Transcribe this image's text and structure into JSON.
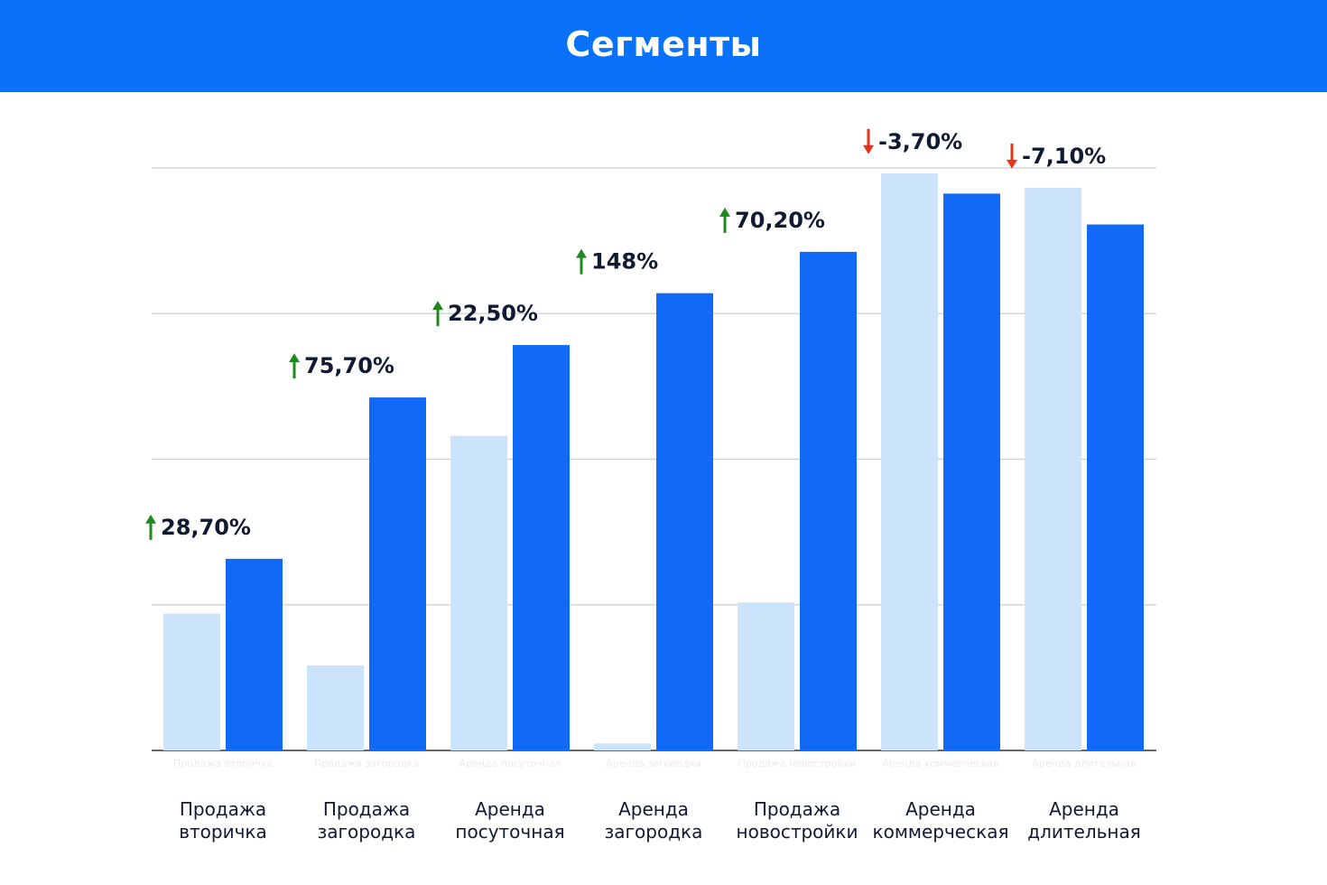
{
  "header": {
    "title": "Сегменты"
  },
  "colors": {
    "header_bg": "#0a72fa",
    "series_prev": "#cce4fb",
    "series_curr": "#1169f7",
    "arrow_up": "#1e8a1e",
    "arrow_down": "#e8331c"
  },
  "chart_data": {
    "type": "bar",
    "title": "Сегменты",
    "grid": true,
    "ylim": [
      0,
      100
    ],
    "categories": [
      "Продажа вторичка",
      "Продажа загородка",
      "Аренда посуточная",
      "Аренда загородка",
      "Продажа новостройки",
      "Аренда коммерческая",
      "Аренда длительная"
    ],
    "category_labels": [
      [
        "Продажа",
        "вторичка"
      ],
      [
        "Продажа",
        "загородка"
      ],
      [
        "Аренда",
        "посуточная"
      ],
      [
        "Аренда",
        "загородка"
      ],
      [
        "Продажа",
        "новостройки"
      ],
      [
        "Аренда",
        "коммерческая"
      ],
      [
        "Аренда",
        "длительная"
      ]
    ],
    "series": [
      {
        "values": [
          23.5,
          14.6,
          54.0,
          1.2,
          25.4,
          99.1,
          96.6
        ]
      },
      {
        "values": [
          32.9,
          60.6,
          69.6,
          78.5,
          85.6,
          95.6,
          90.3
        ]
      }
    ],
    "changes": [
      "28,70%",
      "75,70%",
      "22,50%",
      "148%",
      "70,20%",
      "-3,70%",
      "-7,10%"
    ],
    "directions": [
      "up",
      "up",
      "up",
      "up",
      "up",
      "down",
      "down"
    ]
  }
}
